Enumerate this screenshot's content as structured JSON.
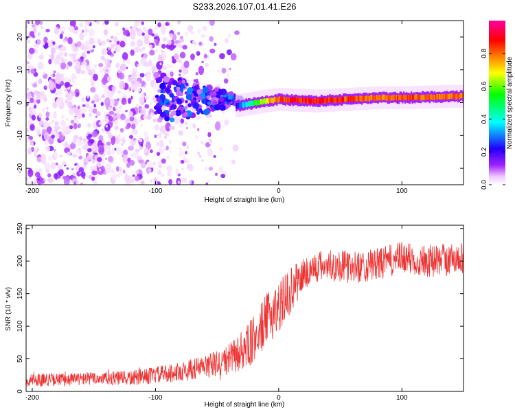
{
  "title": "S233.2026.107.01.41.E26",
  "chart_data": [
    {
      "type": "heatmap",
      "id": "spectrogram",
      "xlabel": "Height of straight line (km)",
      "ylabel": "Frequency (Hz)",
      "xlim": [
        -205,
        150
      ],
      "ylim": [
        -25,
        25
      ],
      "xticks": [
        -200,
        -100,
        0,
        100
      ],
      "yticks": [
        -20,
        -10,
        0,
        10,
        20
      ],
      "colorbar": {
        "label": "Normalized spectral amplitude",
        "range": [
          0,
          1
        ],
        "ticks": [
          0.0,
          0.2,
          0.4,
          0.6,
          0.8
        ],
        "colormap": [
          "#ffffff",
          "#f0c8ff",
          "#a020ff",
          "#2000ff",
          "#00ffff",
          "#00ff00",
          "#ffff00",
          "#ff8000",
          "#ff0000",
          "#ff00a0"
        ]
      },
      "description_points": [
        {
          "x": -200,
          "scatter_band": [
            -25,
            25
          ],
          "amplitude": 0.15
        },
        {
          "x": -100,
          "scatter_band": [
            -25,
            25
          ],
          "amplitude": 0.12
        },
        {
          "x": -60,
          "ridge_freq": 2,
          "amplitude": 0.3
        },
        {
          "x": -35,
          "ridge_freq": -1,
          "amplitude": 0.35
        },
        {
          "x": -10,
          "ridge_freq": 0.5,
          "amplitude": 0.75
        },
        {
          "x": 0,
          "ridge_freq": 1,
          "amplitude": 0.9
        },
        {
          "x": 30,
          "ridge_freq": 0.5,
          "amplitude": 0.95
        },
        {
          "x": 80,
          "ridge_freq": 1.5,
          "amplitude": 0.85
        },
        {
          "x": 100,
          "ridge_freq": 1.5,
          "amplitude": 0.9
        },
        {
          "x": 150,
          "ridge_freq": 2,
          "amplitude": 0.85
        }
      ]
    },
    {
      "type": "line",
      "id": "snr",
      "xlabel": "Height of straight line (km)",
      "ylabel": "SNR (10 * v/v)",
      "xlim": [
        -205,
        150
      ],
      "ylim": [
        0,
        255
      ],
      "xticks": [
        -200,
        -100,
        0,
        100
      ],
      "yticks": [
        0,
        50,
        100,
        150,
        200,
        250
      ],
      "color": "#ee3333",
      "series": [
        {
          "name": "SNR",
          "x": [
            -205,
            -180,
            -150,
            -120,
            -100,
            -80,
            -60,
            -45,
            -30,
            -20,
            -10,
            0,
            10,
            20,
            30,
            40,
            60,
            80,
            100,
            120,
            150
          ],
          "y": [
            18,
            18,
            20,
            20,
            25,
            30,
            38,
            45,
            60,
            80,
            110,
            130,
            155,
            180,
            190,
            195,
            190,
            195,
            205,
            200,
            205
          ],
          "noise": [
            10,
            10,
            10,
            12,
            13,
            15,
            18,
            22,
            30,
            38,
            40,
            40,
            35,
            28,
            25,
            25,
            25,
            25,
            25,
            25,
            25
          ]
        }
      ]
    }
  ]
}
